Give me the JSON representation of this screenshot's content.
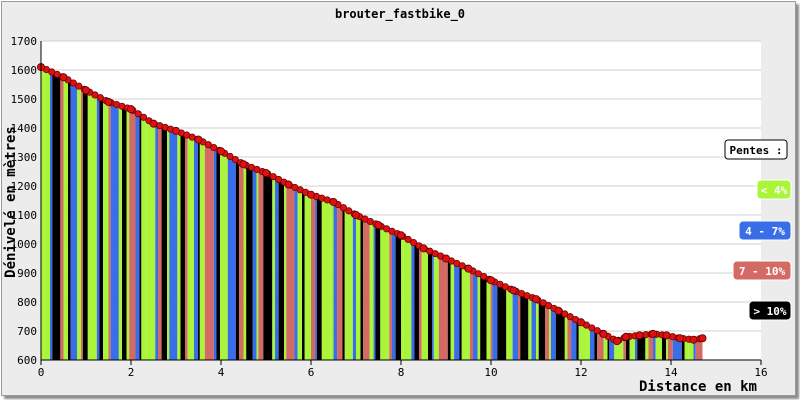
{
  "chart_data": {
    "type": "area",
    "title": "brouter_fastbike_0",
    "xlabel": "Distance en km",
    "ylabel": "Dénivelé en mètres",
    "xlim": [
      0,
      16
    ],
    "ylim": [
      600,
      1700
    ],
    "x_ticks": [
      "0",
      "2",
      "4",
      "6",
      "8",
      "10",
      "12",
      "14",
      "16"
    ],
    "y_ticks": [
      "600",
      "700",
      "800",
      "900",
      "1000",
      "1100",
      "1200",
      "1300",
      "1400",
      "1500",
      "1600",
      "1700"
    ],
    "grid": true,
    "legend_position": "right",
    "legend": {
      "title": "Pentes :",
      "items": [
        {
          "label": "< 4%",
          "color": "#aaf53a",
          "text_color": "#ffffff"
        },
        {
          "label": "4 - 7%",
          "color": "#3a6ee8",
          "text_color": "#ffffff"
        },
        {
          "label": "7 - 10%",
          "color": "#d46a64",
          "text_color": "#ffffff"
        },
        {
          "label": "> 10%",
          "color": "#000000",
          "text_color": "#ffffff"
        }
      ]
    },
    "profile": {
      "x": [
        0,
        0.5,
        1.0,
        1.5,
        2.0,
        2.5,
        3.0,
        3.5,
        4.0,
        4.5,
        5.0,
        5.5,
        6.0,
        6.5,
        7.0,
        7.5,
        8.0,
        8.5,
        9.0,
        9.5,
        10.0,
        10.5,
        11.0,
        11.5,
        12.0,
        12.5,
        12.8,
        13.0,
        13.3,
        13.6,
        13.9,
        14.2,
        14.5,
        14.7
      ],
      "y": [
        1610,
        1575,
        1530,
        1490,
        1465,
        1415,
        1390,
        1360,
        1320,
        1275,
        1245,
        1205,
        1170,
        1145,
        1100,
        1065,
        1030,
        985,
        950,
        915,
        875,
        840,
        810,
        770,
        730,
        690,
        665,
        680,
        685,
        690,
        685,
        675,
        670,
        675
      ]
    },
    "segments_pattern": [
      0,
      0,
      1,
      3,
      2,
      0,
      3,
      1,
      0,
      2,
      3,
      0,
      1,
      3,
      0,
      2,
      1,
      0,
      3,
      0,
      2,
      1,
      3,
      0,
      0,
      1,
      2,
      3,
      0,
      1,
      0,
      3,
      2,
      0,
      1,
      3,
      0,
      2,
      1,
      3
    ]
  }
}
